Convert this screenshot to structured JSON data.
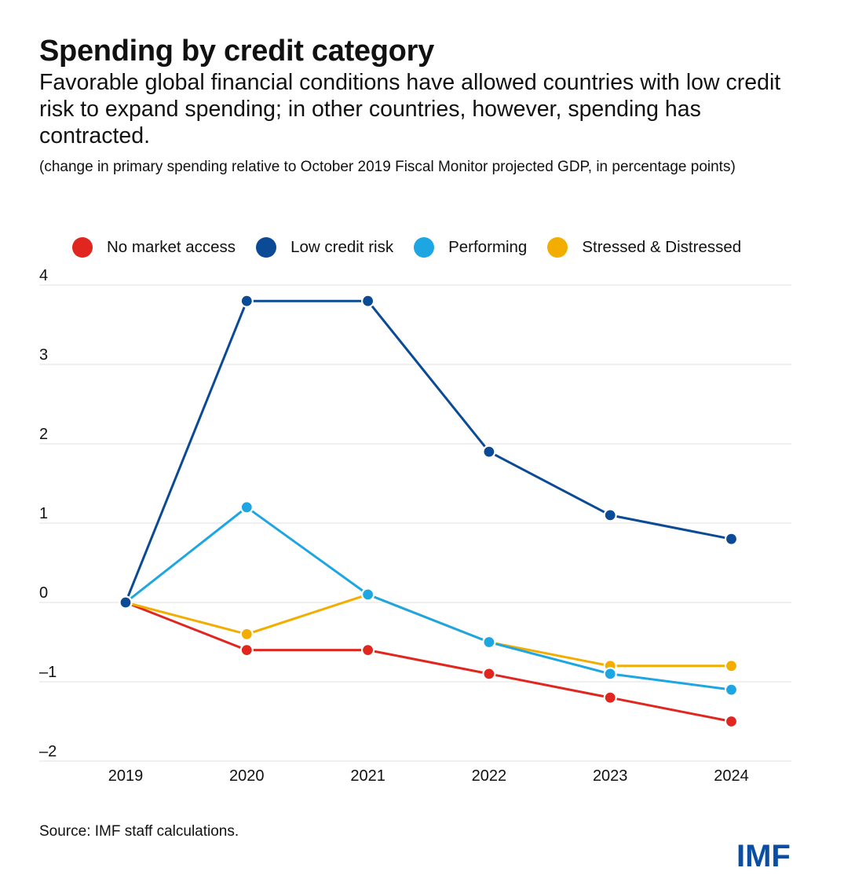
{
  "chart_data": {
    "type": "line",
    "title": "Spending by credit category",
    "subtitle": "Favorable global financial conditions have allowed countries with low credit risk to expand spending; in other countries, however, spending has contracted.",
    "units_note": "(change in primary spending relative to October 2019 Fiscal Monitor projected GDP, in percentage points)",
    "x": [
      "2019",
      "2020",
      "2021",
      "2022",
      "2023",
      "2024"
    ],
    "y_ticks": [
      "4",
      "3",
      "2",
      "1",
      "0",
      "–1",
      "–2"
    ],
    "y_tick_values": [
      4,
      3,
      2,
      1,
      0,
      -1,
      -2
    ],
    "ylim": [
      -2,
      4
    ],
    "grid": true,
    "legend_position": "top",
    "series": [
      {
        "name": "No market access",
        "color": "#e0261e",
        "values": [
          0,
          -0.6,
          -0.6,
          -0.9,
          -1.2,
          -1.5
        ]
      },
      {
        "name": "Low credit risk",
        "color": "#0b4a95",
        "values": [
          0,
          3.8,
          3.8,
          1.9,
          1.1,
          0.8
        ]
      },
      {
        "name": "Performing",
        "color": "#1ea6e2",
        "values": [
          0,
          1.2,
          0.1,
          -0.5,
          -0.9,
          -1.1
        ]
      },
      {
        "name": "Stressed & Distressed",
        "color": "#f2ad00",
        "values": [
          0,
          -0.4,
          0.1,
          -0.5,
          -0.8,
          -0.8
        ]
      }
    ],
    "source": "Source: IMF staff calculations."
  },
  "logo_text": "IMF",
  "colors": {
    "grid": "#e6e6e6",
    "brand": "#0b4ea2"
  }
}
